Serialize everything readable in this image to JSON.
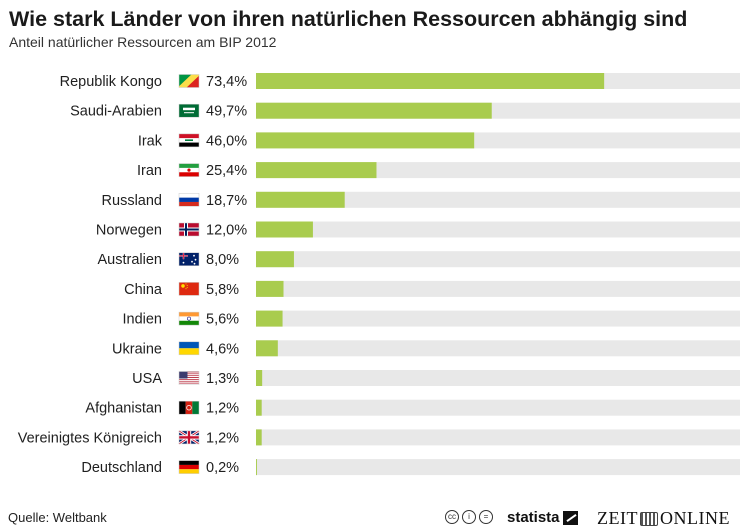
{
  "header": {
    "title": "Wie stark Länder von ihren natürlichen Ressourcen abhängig sind",
    "subtitle": "Anteil natürlicher Ressourcen am BIP 2012"
  },
  "footer": {
    "source": "Quelle: Weltbank",
    "statista_label": "statista",
    "zeit_left": "ZEIT",
    "zeit_right": "ONLINE",
    "license_icons": [
      "cc-icon",
      "by-icon",
      "nd-icon"
    ]
  },
  "colors": {
    "bar": "#a9cc4e",
    "track": "#e8e8e8"
  },
  "chart_data": {
    "type": "bar",
    "orientation": "horizontal",
    "title": "Wie stark Länder von ihren natürlichen Ressourcen abhängig sind",
    "subtitle": "Anteil natürlicher Ressourcen am BIP 2012",
    "xlim": [
      0,
      100
    ],
    "grid": false,
    "categories": [
      "Republik Kongo",
      "Saudi-Arabien",
      "Irak",
      "Iran",
      "Russland",
      "Norwegen",
      "Australien",
      "China",
      "Indien",
      "Ukraine",
      "USA",
      "Afghanistan",
      "Vereinigtes Königreich",
      "Deutschland"
    ],
    "values": [
      73.4,
      49.7,
      46.0,
      25.4,
      18.7,
      12.0,
      8.0,
      5.8,
      5.6,
      4.6,
      1.3,
      1.2,
      1.2,
      0.2
    ],
    "value_labels": [
      "73,4%",
      "49,7%",
      "46,0%",
      "25,4%",
      "18,7%",
      "12,0%",
      "8,0%",
      "5,8%",
      "5,6%",
      "4,6%",
      "1,3%",
      "1,2%",
      "1,2%",
      "0,2%"
    ],
    "flags": [
      "flag-congo-icon",
      "flag-saudi-arabia-icon",
      "flag-iraq-icon",
      "flag-iran-icon",
      "flag-russia-icon",
      "flag-norway-icon",
      "flag-australia-icon",
      "flag-china-icon",
      "flag-india-icon",
      "flag-ukraine-icon",
      "flag-usa-icon",
      "flag-afghanistan-icon",
      "flag-uk-icon",
      "flag-germany-icon"
    ]
  }
}
